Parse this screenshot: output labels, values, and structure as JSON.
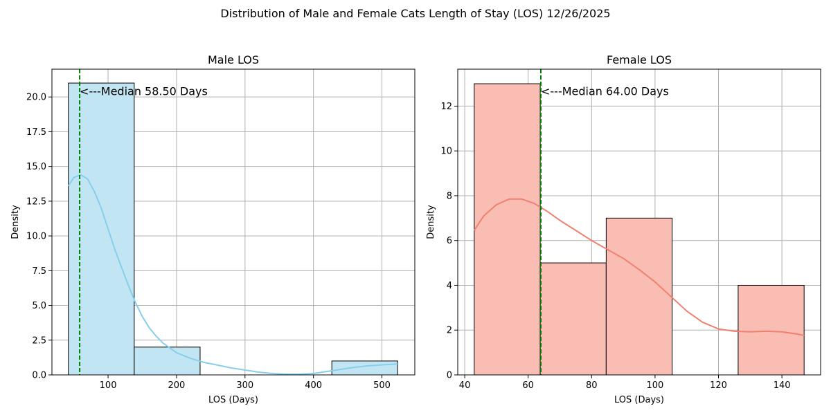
{
  "figure": {
    "title": "Distribution of Male and Female Cats Length of Stay (LOS) 12/26/2025"
  },
  "chart_data": [
    {
      "type": "histogram",
      "title": "Male LOS",
      "xlabel": "LOS (Days)",
      "ylabel": "Density",
      "xlim": [
        18,
        548
      ],
      "ylim": [
        0,
        22
      ],
      "xticks": [
        100,
        200,
        300,
        400,
        500
      ],
      "yticks": [
        0.0,
        2.5,
        5.0,
        7.5,
        10.0,
        12.5,
        15.0,
        17.5,
        20.0
      ],
      "tick_decimals": 1,
      "grid": true,
      "bar_color": "#c2e5f3",
      "kde_color": "#87ceeb",
      "bins": [
        {
          "x0": 42,
          "x1": 138.2,
          "value": 21
        },
        {
          "x0": 138.2,
          "x1": 234.4,
          "value": 2
        },
        {
          "x0": 234.4,
          "x1": 330.6,
          "value": 0
        },
        {
          "x0": 330.6,
          "x1": 426.8,
          "value": 0
        },
        {
          "x0": 426.8,
          "x1": 523,
          "value": 1
        }
      ],
      "kde": {
        "x": [
          42,
          50,
          60,
          70,
          80,
          90,
          100,
          110,
          120,
          130,
          140,
          150,
          160,
          170,
          180,
          200,
          220,
          240,
          260,
          280,
          300,
          320,
          340,
          360,
          380,
          400,
          420,
          440,
          460,
          480,
          500,
          523
        ],
        "y": [
          13.6,
          14.2,
          14.4,
          14.1,
          13.2,
          12.0,
          10.5,
          9.0,
          7.7,
          6.4,
          5.2,
          4.2,
          3.4,
          2.8,
          2.3,
          1.6,
          1.2,
          0.9,
          0.7,
          0.5,
          0.35,
          0.2,
          0.1,
          0.05,
          0.05,
          0.1,
          0.25,
          0.4,
          0.55,
          0.65,
          0.72,
          0.78
        ]
      },
      "median": 58.5,
      "median_color": "#008000",
      "median_label": "<---Median 58.50 Days"
    },
    {
      "type": "histogram",
      "title": "Female LOS",
      "xlabel": "LOS (Days)",
      "ylabel": "Density",
      "xlim": [
        37.8,
        152.2
      ],
      "ylim": [
        0,
        13.65
      ],
      "xticks": [
        40,
        60,
        80,
        100,
        120,
        140
      ],
      "yticks": [
        0,
        2,
        4,
        6,
        8,
        10,
        12
      ],
      "tick_decimals": 0,
      "grid": true,
      "bar_color": "#fabdb4",
      "kde_color": "#f08070",
      "bins": [
        {
          "x0": 43,
          "x1": 63.8,
          "value": 13
        },
        {
          "x0": 63.8,
          "x1": 84.6,
          "value": 5
        },
        {
          "x0": 84.6,
          "x1": 105.4,
          "value": 7
        },
        {
          "x0": 105.4,
          "x1": 126.2,
          "value": 0
        },
        {
          "x0": 126.2,
          "x1": 147,
          "value": 4
        }
      ],
      "kde": {
        "x": [
          43,
          46,
          50,
          54,
          58,
          62,
          66,
          70,
          75,
          80,
          85,
          90,
          95,
          100,
          105,
          110,
          115,
          120,
          125,
          130,
          135,
          140,
          145,
          147
        ],
        "y": [
          6.45,
          7.1,
          7.6,
          7.85,
          7.85,
          7.65,
          7.3,
          6.9,
          6.45,
          6.0,
          5.6,
          5.2,
          4.7,
          4.15,
          3.5,
          2.85,
          2.35,
          2.05,
          1.95,
          1.92,
          1.95,
          1.92,
          1.82,
          1.76
        ]
      },
      "median": 64.0,
      "median_color": "#008000",
      "median_label": "<---Median 64.00 Days"
    }
  ]
}
